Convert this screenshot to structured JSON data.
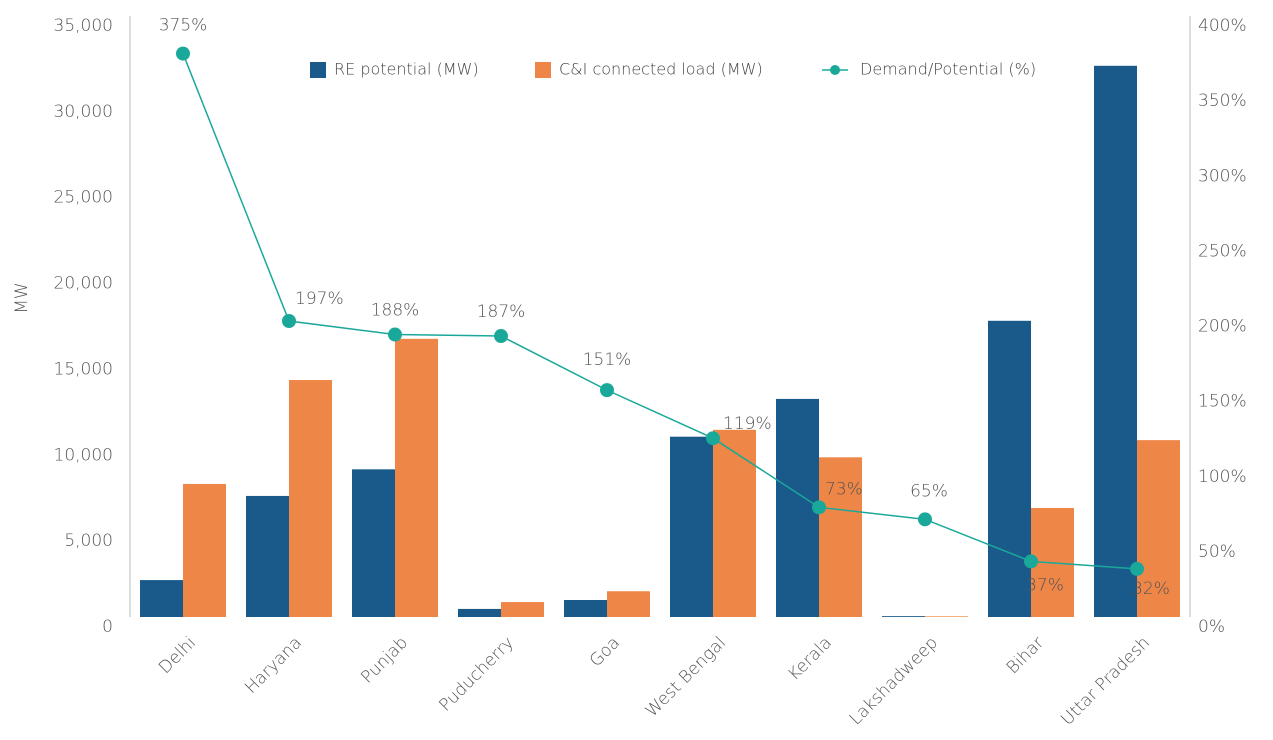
{
  "chart_data": {
    "type": "bar-line",
    "y_label": "MW",
    "categories": [
      "Delhi",
      "Haryana",
      "Punjab",
      "Puducherry",
      "Goa",
      "West Bengal",
      "Kerala",
      "Lakshadweep",
      "Bihar",
      "Uttar Pradesh"
    ],
    "series": [
      {
        "name": "RE potential (MW)",
        "color": "#1a5a8a",
        "type": "bar",
        "values": [
          2150,
          7050,
          8600,
          470,
          990,
          10500,
          12700,
          50,
          17250,
          32100
        ]
      },
      {
        "name": "C&I connected load (MW)",
        "color": "#ee8648",
        "type": "bar",
        "values": [
          7750,
          13800,
          16200,
          870,
          1500,
          10900,
          9300,
          40,
          6350,
          10300
        ]
      },
      {
        "name": "Demand/Potential (%)",
        "color": "#1aa89a",
        "type": "line",
        "axis": "y2",
        "values": [
          375,
          197,
          188,
          187,
          151,
          119,
          73,
          65,
          37,
          32
        ],
        "value_labels": [
          "375%",
          "197%",
          "188%",
          "187%",
          "151%",
          "119%",
          "73%",
          "65%",
          "37%",
          "32%"
        ]
      }
    ],
    "ylim": [
      0,
      35000
    ],
    "yticks": [
      0,
      {
        "value": 5000,
        "label": "5,000"
      },
      {
        "value": 10000,
        "label": "10,000"
      },
      {
        "value": 15000,
        "label": "15,000"
      },
      {
        "value": 20000,
        "label": "20,000"
      },
      {
        "value": 25000,
        "label": "25,000"
      },
      {
        "value": 30000,
        "label": "30,000"
      },
      {
        "value": 35000,
        "label": "35,000"
      }
    ],
    "y2lim": [
      0,
      400
    ],
    "y2ticks": [
      {
        "value": 0,
        "label": "0%"
      },
      {
        "value": 50,
        "label": "50%"
      },
      {
        "value": 100,
        "label": "100%"
      },
      {
        "value": 150,
        "label": "150%"
      },
      {
        "value": 200,
        "label": "200%"
      },
      {
        "value": 250,
        "label": "250%"
      },
      {
        "value": 300,
        "label": "300%"
      },
      {
        "value": 350,
        "label": "350%"
      },
      {
        "value": 400,
        "label": "400%"
      }
    ],
    "legend": "top"
  }
}
